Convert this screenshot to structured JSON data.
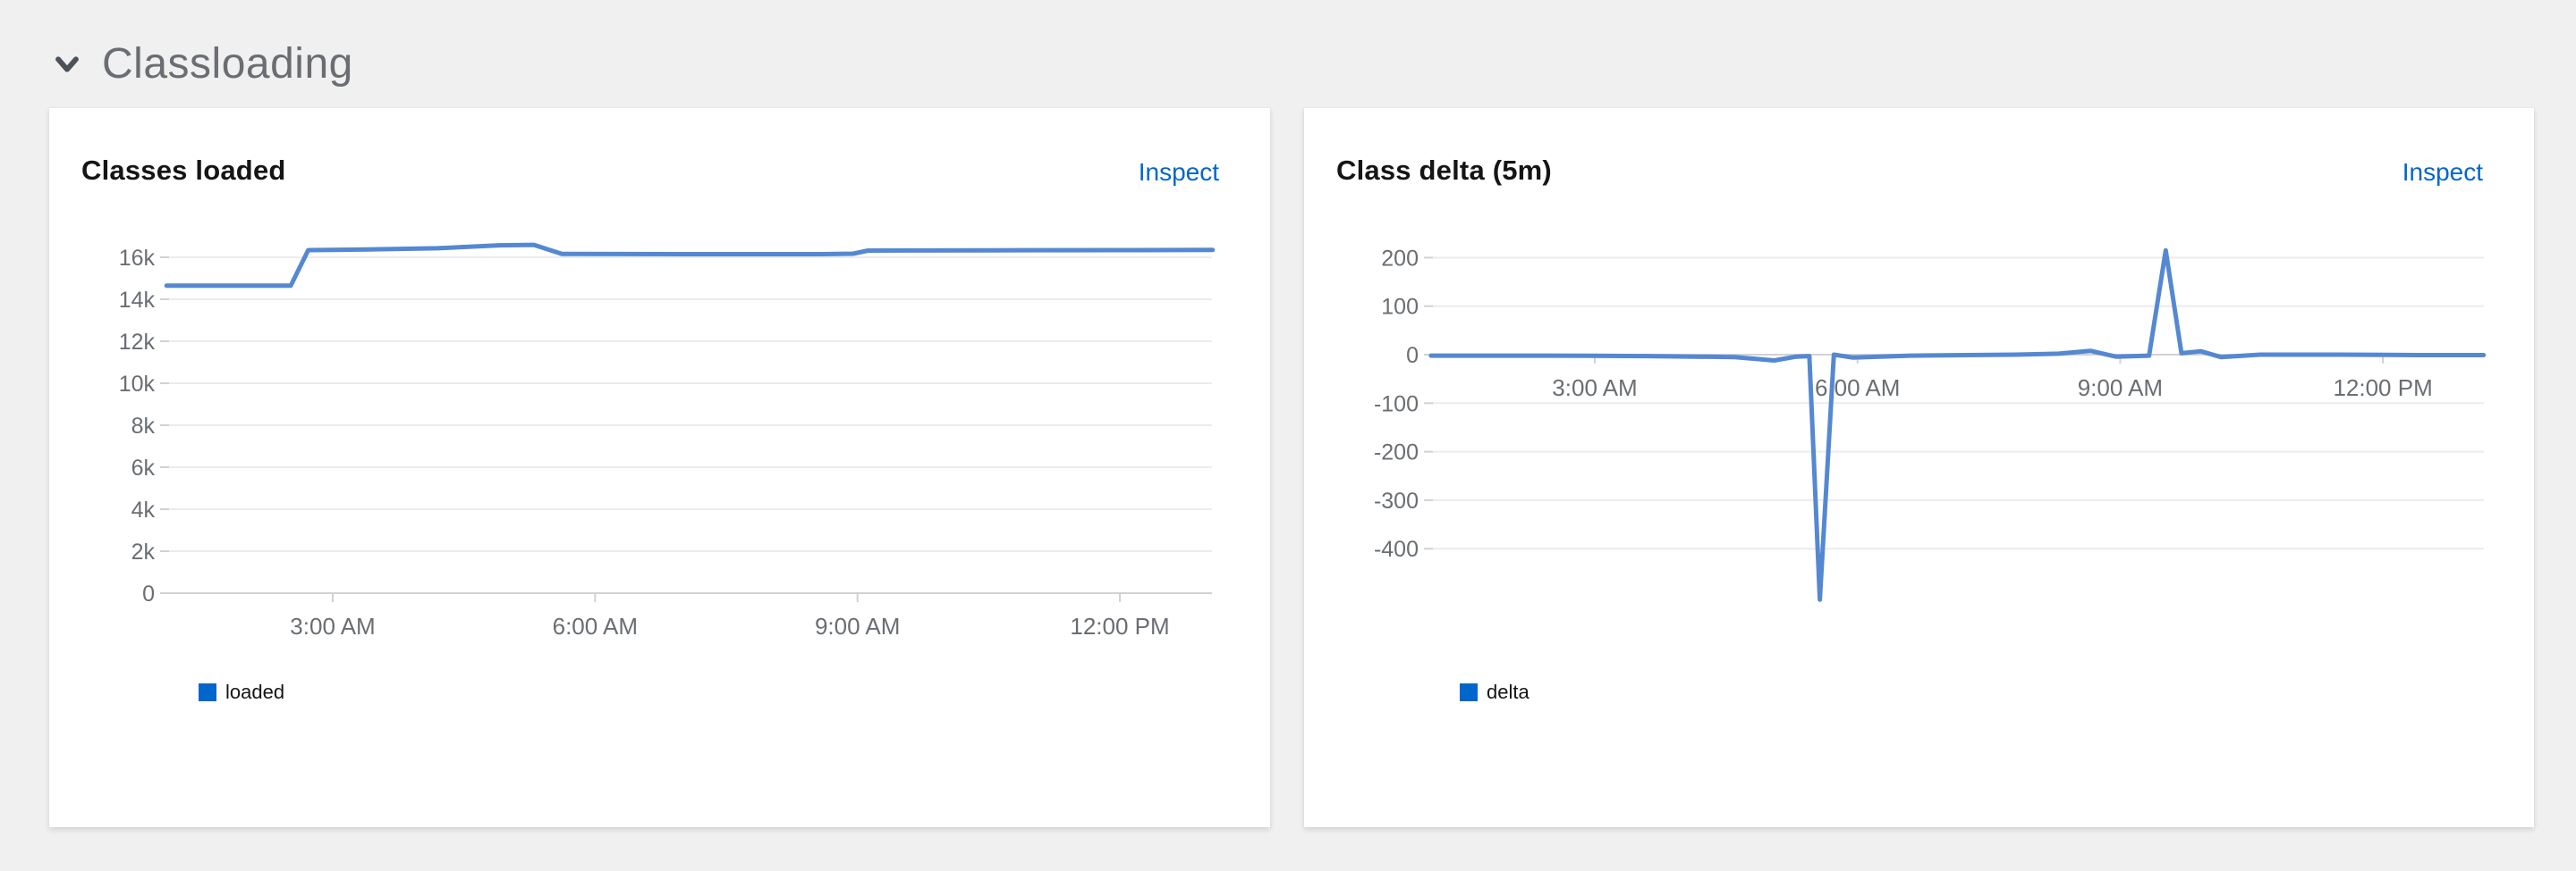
{
  "page": {
    "background": "#f0f0f0"
  },
  "section": {
    "title": "Classloading",
    "chevron_icon": "chevron-down"
  },
  "theme": {
    "card_background": "#ffffff",
    "link_color": "#0066cc",
    "title_color": "#151515",
    "section_title_color": "#6a6e73",
    "grid_color": "#ececec",
    "axis_color": "#d2d2d2",
    "tick_label_color": "#6a6e73",
    "line_color": "#5488d2",
    "legend_swatch_color": "#0066cc"
  },
  "charts": [
    {
      "title": "Classes loaded",
      "action_label": "Inspect",
      "legend": [
        {
          "label": "loaded",
          "color": "#0066cc"
        }
      ],
      "chart_data": {
        "type": "line",
        "x_unit": "hours-since-midnight",
        "xlim": [
          1.1,
          13.06
        ],
        "ylim": [
          0,
          17000
        ],
        "grid": true,
        "legend_position": "bottom-left",
        "x_ticks": [
          {
            "value": 3,
            "label": "3:00 AM"
          },
          {
            "value": 6,
            "label": "6:00 AM"
          },
          {
            "value": 9,
            "label": "9:00 AM"
          },
          {
            "value": 12,
            "label": "12:00 PM"
          }
        ],
        "y_ticks": [
          {
            "value": 0,
            "label": "0"
          },
          {
            "value": 2000,
            "label": "2k"
          },
          {
            "value": 4000,
            "label": "4k"
          },
          {
            "value": 6000,
            "label": "6k"
          },
          {
            "value": 8000,
            "label": "8k"
          },
          {
            "value": 10000,
            "label": "10k"
          },
          {
            "value": 12000,
            "label": "12k"
          },
          {
            "value": 14000,
            "label": "14k"
          },
          {
            "value": 16000,
            "label": "16k"
          }
        ],
        "series": [
          {
            "name": "loaded",
            "points": [
              [
                1.1,
                14650
              ],
              [
                2.0,
                14650
              ],
              [
                2.52,
                14650
              ],
              [
                2.72,
                16340
              ],
              [
                3.4,
                16370
              ],
              [
                4.2,
                16430
              ],
              [
                4.9,
                16570
              ],
              [
                5.3,
                16590
              ],
              [
                5.62,
                16160
              ],
              [
                7.0,
                16150
              ],
              [
                8.6,
                16150
              ],
              [
                8.95,
                16170
              ],
              [
                9.12,
                16320
              ],
              [
                10.5,
                16330
              ],
              [
                12.0,
                16340
              ],
              [
                13.06,
                16350
              ]
            ]
          }
        ]
      }
    },
    {
      "title": "Class delta (5m)",
      "action_label": "Inspect",
      "legend": [
        {
          "label": "delta",
          "color": "#0066cc"
        }
      ],
      "chart_data": {
        "type": "line",
        "x_unit": "hours-since-midnight",
        "xlim": [
          1.13,
          13.15
        ],
        "ylim": [
          -510,
          255
        ],
        "grid": true,
        "legend_position": "bottom-left",
        "x_ticks": [
          {
            "value": 3,
            "label": "3:00 AM"
          },
          {
            "value": 6,
            "label": "6:00 AM"
          },
          {
            "value": 9,
            "label": "9:00 AM"
          },
          {
            "value": 12,
            "label": "12:00 PM"
          }
        ],
        "y_ticks": [
          {
            "value": 200,
            "label": "200"
          },
          {
            "value": 100,
            "label": "100"
          },
          {
            "value": 0,
            "label": "0"
          },
          {
            "value": -100,
            "label": "-100"
          },
          {
            "value": -200,
            "label": "-200"
          },
          {
            "value": -300,
            "label": "-300"
          },
          {
            "value": -400,
            "label": "-400"
          }
        ],
        "series": [
          {
            "name": "delta",
            "points": [
              [
                1.13,
                -2
              ],
              [
                2.5,
                -2
              ],
              [
                3.6,
                -3
              ],
              [
                4.6,
                -5
              ],
              [
                5.05,
                -12
              ],
              [
                5.3,
                -4
              ],
              [
                5.45,
                -3
              ],
              [
                5.57,
                -505
              ],
              [
                5.73,
                0
              ],
              [
                5.95,
                -6
              ],
              [
                6.6,
                -2
              ],
              [
                7.8,
                0
              ],
              [
                8.3,
                2
              ],
              [
                8.66,
                8
              ],
              [
                8.95,
                -4
              ],
              [
                9.33,
                -2
              ],
              [
                9.52,
                215
              ],
              [
                9.7,
                3
              ],
              [
                9.92,
                7
              ],
              [
                10.15,
                -5
              ],
              [
                10.6,
                0
              ],
              [
                11.5,
                0
              ],
              [
                12.4,
                -1
              ],
              [
                13.15,
                -1
              ]
            ]
          }
        ]
      }
    }
  ]
}
